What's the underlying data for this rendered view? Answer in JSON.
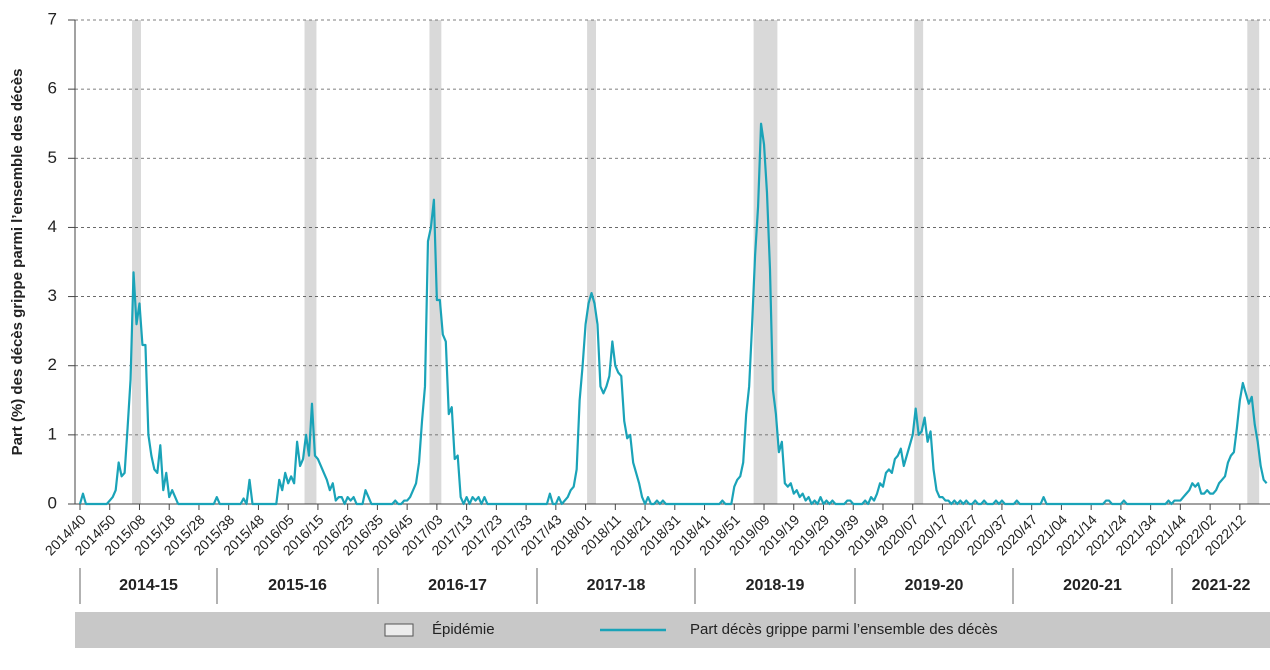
{
  "chart_data": {
    "type": "line",
    "y_label": "Part (%) des décès grippe parmi l’ensemble des décès",
    "categories": [
      "2014/40",
      null,
      null,
      null,
      null,
      null,
      null,
      null,
      null,
      null,
      "2014/50",
      null,
      null,
      null,
      null,
      null,
      null,
      null,
      null,
      null,
      "2015/08",
      null,
      null,
      null,
      null,
      null,
      null,
      null,
      null,
      null,
      "2015/18",
      null,
      null,
      null,
      null,
      null,
      null,
      null,
      null,
      null,
      "2015/28",
      null,
      null,
      null,
      null,
      null,
      null,
      null,
      null,
      null,
      "2015/38",
      null,
      null,
      null,
      null,
      null,
      null,
      null,
      null,
      null,
      "2015/48",
      null,
      null,
      null,
      null,
      null,
      null,
      null,
      null,
      null,
      "2016/05",
      null,
      null,
      null,
      null,
      null,
      null,
      null,
      null,
      null,
      "2016/15",
      null,
      null,
      null,
      null,
      null,
      null,
      null,
      null,
      null,
      "2016/25",
      null,
      null,
      null,
      null,
      null,
      null,
      null,
      null,
      null,
      "2016/35",
      null,
      null,
      null,
      null,
      null,
      null,
      null,
      null,
      null,
      "2016/45",
      null,
      null,
      null,
      null,
      null,
      null,
      null,
      null,
      null,
      "2017/03",
      null,
      null,
      null,
      null,
      null,
      null,
      null,
      null,
      null,
      "2017/13",
      null,
      null,
      null,
      null,
      null,
      null,
      null,
      null,
      null,
      "2017/23",
      null,
      null,
      null,
      null,
      null,
      null,
      null,
      null,
      null,
      "2017/33",
      null,
      null,
      null,
      null,
      null,
      null,
      null,
      null,
      null,
      "2017/43",
      null,
      null,
      null,
      null,
      null,
      null,
      null,
      null,
      null,
      "2018/01",
      null,
      null,
      null,
      null,
      null,
      null,
      null,
      null,
      null,
      "2018/11",
      null,
      null,
      null,
      null,
      null,
      null,
      null,
      null,
      null,
      "2018/21",
      null,
      null,
      null,
      null,
      null,
      null,
      null,
      null,
      null,
      "2018/31",
      null,
      null,
      null,
      null,
      null,
      null,
      null,
      null,
      null,
      "2018/41",
      null,
      null,
      null,
      null,
      null,
      null,
      null,
      null,
      null,
      "2018/51",
      null,
      null,
      null,
      null,
      null,
      null,
      null,
      null,
      null,
      "2019/09",
      null,
      null,
      null,
      null,
      null,
      null,
      null,
      null,
      null,
      "2019/19",
      null,
      null,
      null,
      null,
      null,
      null,
      null,
      null,
      null,
      "2019/29",
      null,
      null,
      null,
      null,
      null,
      null,
      null,
      null,
      null,
      "2019/39",
      null,
      null,
      null,
      null,
      null,
      null,
      null,
      null,
      null,
      "2019/49",
      null,
      null,
      null,
      null,
      null,
      null,
      null,
      null,
      null,
      "2020/07",
      null,
      null,
      null,
      null,
      null,
      null,
      null,
      null,
      null,
      "2020/17",
      null,
      null,
      null,
      null,
      null,
      null,
      null,
      null,
      null,
      "2020/27",
      null,
      null,
      null,
      null,
      null,
      null,
      null,
      null,
      null,
      "2020/37",
      null,
      null,
      null,
      null,
      null,
      null,
      null,
      null,
      null,
      "2020/47",
      null,
      null,
      null,
      null,
      null,
      null,
      null,
      null,
      null,
      "2021/04",
      null,
      null,
      null,
      null,
      null,
      null,
      null,
      null,
      null,
      "2021/14",
      null,
      null,
      null,
      null,
      null,
      null,
      null,
      null,
      null,
      "2021/24",
      null,
      null,
      null,
      null,
      null,
      null,
      null,
      null,
      null,
      "2021/34",
      null,
      null,
      null,
      null,
      null,
      null,
      null,
      null,
      null,
      "2021/44",
      null,
      null,
      null,
      null,
      null,
      null,
      null,
      null,
      null,
      "2022/02",
      null,
      null,
      null,
      null,
      null,
      null,
      null,
      null,
      null,
      "2022/12",
      null,
      null,
      null,
      null,
      null,
      null,
      null,
      null,
      null
    ],
    "series": [
      {
        "name": "Part décès grippe parmi l’ensemble des décès",
        "color": "#1aa3b8",
        "values": [
          0,
          0.15,
          0,
          0,
          0,
          0,
          0,
          0,
          0,
          0,
          0.05,
          0.1,
          0.2,
          0.6,
          0.4,
          0.45,
          1.1,
          1.8,
          3.35,
          2.6,
          2.9,
          2.3,
          2.3,
          1.0,
          0.7,
          0.5,
          0.45,
          0.85,
          0.2,
          0.45,
          0.1,
          0.2,
          0.1,
          0,
          0,
          0,
          0,
          0,
          0,
          0,
          0,
          0,
          0,
          0,
          0,
          0,
          0.1,
          0,
          0,
          0,
          0,
          0,
          0,
          0,
          0,
          0.08,
          0,
          0.35,
          0,
          0,
          0,
          0,
          0,
          0,
          0,
          0,
          0,
          0.35,
          0.2,
          0.45,
          0.3,
          0.4,
          0.3,
          0.9,
          0.55,
          0.65,
          1.0,
          0.7,
          1.45,
          0.7,
          0.65,
          0.55,
          0.45,
          0.35,
          0.2,
          0.3,
          0.05,
          0.1,
          0.1,
          0,
          0.1,
          0.05,
          0.1,
          0,
          0,
          0,
          0.2,
          0.1,
          0,
          0,
          0,
          0,
          0,
          0,
          0,
          0,
          0.05,
          0,
          0,
          0.05,
          0.05,
          0.1,
          0.2,
          0.3,
          0.6,
          1.2,
          1.7,
          3.8,
          4.0,
          4.4,
          2.95,
          2.95,
          2.45,
          2.35,
          1.3,
          1.4,
          0.65,
          0.7,
          0.1,
          0,
          0.1,
          0,
          0.1,
          0.05,
          0.1,
          0,
          0.1,
          0,
          0,
          0,
          0,
          0,
          0,
          0,
          0,
          0,
          0,
          0,
          0,
          0,
          0,
          0,
          0,
          0,
          0,
          0,
          0,
          0,
          0.15,
          0,
          0,
          0.1,
          0,
          0.05,
          0.1,
          0.2,
          0.25,
          0.5,
          1.5,
          2.0,
          2.6,
          2.9,
          3.05,
          2.9,
          2.6,
          1.7,
          1.6,
          1.7,
          1.85,
          2.35,
          2.0,
          1.9,
          1.85,
          1.2,
          0.95,
          1.0,
          0.6,
          0.45,
          0.3,
          0.1,
          0,
          0.1,
          0,
          0,
          0.05,
          0,
          0.05,
          0,
          0,
          0,
          0,
          0,
          0,
          0,
          0,
          0,
          0,
          0,
          0,
          0,
          0,
          0,
          0,
          0,
          0,
          0,
          0.05,
          0,
          0,
          0,
          0.25,
          0.35,
          0.4,
          0.6,
          1.3,
          1.7,
          2.6,
          3.6,
          4.3,
          5.5,
          5.2,
          4.5,
          3.4,
          1.65,
          1.3,
          0.75,
          0.9,
          0.3,
          0.25,
          0.3,
          0.15,
          0.2,
          0.1,
          0.15,
          0.05,
          0.1,
          0,
          0.05,
          0,
          0.1,
          0,
          0.05,
          0,
          0.05,
          0,
          0,
          0,
          0,
          0.05,
          0.05,
          0,
          0,
          0,
          0,
          0.05,
          0,
          0.1,
          0.05,
          0.15,
          0.3,
          0.25,
          0.45,
          0.5,
          0.45,
          0.65,
          0.7,
          0.8,
          0.55,
          0.7,
          0.85,
          1.0,
          1.38,
          1.0,
          1.05,
          1.25,
          0.9,
          1.05,
          0.5,
          0.2,
          0.1,
          0.1,
          0.05,
          0.05,
          0,
          0.05,
          0,
          0.05,
          0,
          0.05,
          0,
          0,
          0.05,
          0,
          0,
          0.05,
          0,
          0,
          0,
          0.05,
          0,
          0.05,
          0,
          0,
          0,
          0,
          0.05,
          0,
          0,
          0,
          0,
          0,
          0,
          0,
          0,
          0.1,
          0,
          0,
          0,
          0,
          0,
          0,
          0,
          0,
          0,
          0,
          0,
          0,
          0,
          0,
          0,
          0,
          0,
          0,
          0,
          0,
          0.05,
          0.05,
          0,
          0,
          0,
          0,
          0.05,
          0,
          0,
          0,
          0,
          0,
          0,
          0,
          0,
          0,
          0,
          0,
          0,
          0,
          0,
          0.05,
          0,
          0.05,
          0.05,
          0.05,
          0.1,
          0.15,
          0.2,
          0.3,
          0.25,
          0.3,
          0.15,
          0.15,
          0.2,
          0.15,
          0.15,
          0.2,
          0.3,
          0.35,
          0.4,
          0.6,
          0.7,
          0.75,
          1.1,
          1.5,
          1.75,
          1.6,
          1.45,
          1.55,
          1.15,
          0.9,
          0.55,
          0.35,
          0.3
        ]
      }
    ],
    "epidemic_label": "Épidémie",
    "epidemic_color": "#d9d9d9",
    "epidemics": [
      [
        18,
        20
      ],
      [
        76,
        79
      ],
      [
        118,
        121
      ],
      [
        171,
        173
      ],
      [
        227,
        234
      ],
      [
        281,
        283
      ],
      [
        393,
        396
      ]
    ],
    "seasons": [
      "2014-15",
      "2015-16",
      "2016-17",
      "2017-18",
      "2018-19",
      "2019-20",
      "2020-21",
      "2021-22"
    ],
    "ylim": [
      0,
      7
    ],
    "yticks": [
      0,
      1,
      2,
      3,
      4,
      5,
      6,
      7
    ],
    "grid": true
  }
}
